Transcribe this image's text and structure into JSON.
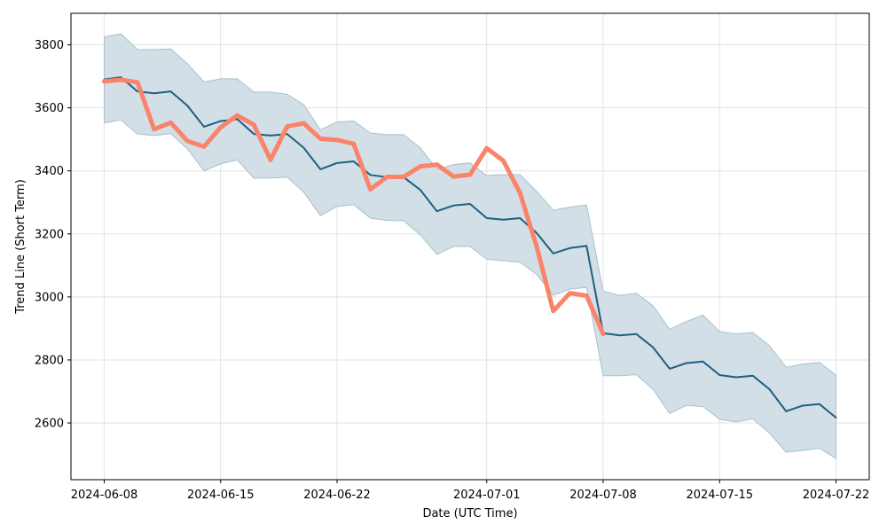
{
  "chart_data": {
    "type": "line",
    "xlabel": "Date (UTC Time)",
    "ylabel": "Trend Line (Short Term)",
    "xlim": [
      "2024-06-06",
      "2024-07-24"
    ],
    "ylim": [
      2420,
      3900
    ],
    "grid": true,
    "x_ticks": [
      "2024-06-08",
      "2024-06-15",
      "2024-06-22",
      "2024-07-01",
      "2024-07-08",
      "2024-07-15",
      "2024-07-22"
    ],
    "y_ticks": [
      2600,
      2800,
      3000,
      3200,
      3400,
      3600,
      3800
    ],
    "band": {
      "color": "#d2dfe6",
      "dates": [
        "2024-06-08",
        "2024-06-09",
        "2024-06-10",
        "2024-06-11",
        "2024-06-12",
        "2024-06-13",
        "2024-06-14",
        "2024-06-15",
        "2024-06-16",
        "2024-06-17",
        "2024-06-18",
        "2024-06-19",
        "2024-06-20",
        "2024-06-21",
        "2024-06-22",
        "2024-06-23",
        "2024-06-24",
        "2024-06-25",
        "2024-06-26",
        "2024-06-27",
        "2024-06-28",
        "2024-06-29",
        "2024-06-30",
        "2024-07-01",
        "2024-07-02",
        "2024-07-03",
        "2024-07-04",
        "2024-07-05",
        "2024-07-06",
        "2024-07-07",
        "2024-07-08",
        "2024-07-09",
        "2024-07-10",
        "2024-07-11",
        "2024-07-12",
        "2024-07-13",
        "2024-07-14",
        "2024-07-15",
        "2024-07-16",
        "2024-07-17",
        "2024-07-18",
        "2024-07-19",
        "2024-07-20",
        "2024-07-21",
        "2024-07-22"
      ],
      "upper": [
        3825,
        3835,
        3785,
        3785,
        3787,
        3740,
        3682,
        3692,
        3692,
        3650,
        3650,
        3643,
        3610,
        3530,
        3555,
        3558,
        3520,
        3515,
        3515,
        3473,
        3405,
        3420,
        3425,
        3385,
        3388,
        3388,
        3335,
        3275,
        3285,
        3292,
        3018,
        3005,
        3012,
        2972,
        2897,
        2922,
        2942,
        2890,
        2883,
        2887,
        2845,
        2777,
        2787,
        2792,
        2752
      ],
      "lower": [
        3552,
        3562,
        3517,
        3512,
        3518,
        3470,
        3400,
        3422,
        3435,
        3377,
        3377,
        3380,
        3332,
        3258,
        3287,
        3293,
        3250,
        3243,
        3242,
        3197,
        3135,
        3160,
        3160,
        3120,
        3115,
        3110,
        3072,
        3005,
        3025,
        3030,
        2750,
        2750,
        2753,
        2707,
        2630,
        2656,
        2652,
        2612,
        2603,
        2613,
        2568,
        2507,
        2513,
        2520,
        2487
      ]
    },
    "series": [
      {
        "color": "#1f5f80",
        "dates": [
          "2024-06-08",
          "2024-06-09",
          "2024-06-10",
          "2024-06-11",
          "2024-06-12",
          "2024-06-13",
          "2024-06-14",
          "2024-06-15",
          "2024-06-16",
          "2024-06-17",
          "2024-06-18",
          "2024-06-19",
          "2024-06-20",
          "2024-06-21",
          "2024-06-22",
          "2024-06-23",
          "2024-06-24",
          "2024-06-25",
          "2024-06-26",
          "2024-06-27",
          "2024-06-28",
          "2024-06-29",
          "2024-06-30",
          "2024-07-01",
          "2024-07-02",
          "2024-07-03",
          "2024-07-04",
          "2024-07-05",
          "2024-07-06",
          "2024-07-07",
          "2024-07-08",
          "2024-07-09",
          "2024-07-10",
          "2024-07-11",
          "2024-07-12",
          "2024-07-13",
          "2024-07-14",
          "2024-07-15",
          "2024-07-16",
          "2024-07-17",
          "2024-07-18",
          "2024-07-19",
          "2024-07-20",
          "2024-07-21",
          "2024-07-22"
        ],
        "values": [
          3690,
          3697,
          3652,
          3646,
          3652,
          3607,
          3540,
          3558,
          3564,
          3517,
          3512,
          3517,
          3473,
          3405,
          3425,
          3430,
          3387,
          3380,
          3380,
          3340,
          3272,
          3290,
          3295,
          3250,
          3245,
          3250,
          3203,
          3138,
          3155,
          3162,
          2885,
          2878,
          2882,
          2840,
          2772,
          2790,
          2795,
          2752,
          2745,
          2750,
          2707,
          2637,
          2655,
          2660,
          2617
        ]
      },
      {
        "color": "#fa8369",
        "dates": [
          "2024-06-08",
          "2024-06-09",
          "2024-06-10",
          "2024-06-11",
          "2024-06-12",
          "2024-06-13",
          "2024-06-14",
          "2024-06-15",
          "2024-06-16",
          "2024-06-17",
          "2024-06-18",
          "2024-06-19",
          "2024-06-20",
          "2024-06-21",
          "2024-06-22",
          "2024-06-23",
          "2024-06-24",
          "2024-06-25",
          "2024-06-26",
          "2024-06-27",
          "2024-06-28",
          "2024-06-29",
          "2024-06-30",
          "2024-07-01",
          "2024-07-02",
          "2024-07-03",
          "2024-07-04",
          "2024-07-05",
          "2024-07-06",
          "2024-07-07",
          "2024-07-08"
        ],
        "values": [
          3684,
          3689,
          3681,
          3532,
          3553,
          3495,
          3477,
          3538,
          3576,
          3546,
          3435,
          3541,
          3551,
          3502,
          3498,
          3486,
          3341,
          3381,
          3381,
          3414,
          3420,
          3382,
          3388,
          3472,
          3432,
          3330,
          3160,
          2955,
          3012,
          3004,
          2883
        ]
      }
    ]
  }
}
